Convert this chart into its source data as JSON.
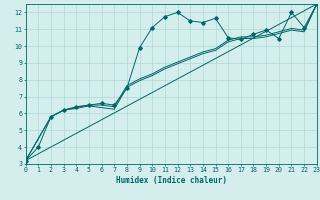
{
  "title": "",
  "xlabel": "Humidex (Indice chaleur)",
  "xlim": [
    0,
    23
  ],
  "ylim": [
    3,
    12.5
  ],
  "xticks": [
    0,
    1,
    2,
    3,
    4,
    5,
    6,
    7,
    8,
    9,
    10,
    11,
    12,
    13,
    14,
    15,
    16,
    17,
    18,
    19,
    20,
    21,
    22,
    23
  ],
  "yticks": [
    3,
    4,
    5,
    6,
    7,
    8,
    9,
    10,
    11,
    12
  ],
  "bg_color": "#d4eeee",
  "line_color": "#006666",
  "grid_color": "#b0d8d8",
  "line1_x": [
    0,
    1,
    2,
    3,
    4,
    5,
    6,
    7,
    8,
    9,
    10,
    11,
    12,
    13,
    14,
    15,
    16,
    17,
    18,
    19,
    20,
    21,
    22,
    23
  ],
  "line1_y": [
    3.2,
    4.0,
    5.8,
    6.2,
    6.4,
    6.5,
    6.6,
    6.5,
    7.5,
    9.9,
    11.1,
    11.75,
    12.0,
    11.5,
    11.4,
    11.65,
    10.5,
    10.4,
    10.7,
    10.95,
    10.45,
    12.0,
    11.1,
    12.5
  ],
  "line2_x": [
    0,
    2,
    3,
    4,
    5,
    6,
    7,
    8,
    9,
    10,
    11,
    12,
    13,
    14,
    15,
    16,
    17,
    18,
    19,
    20,
    21,
    22,
    23
  ],
  "line2_y": [
    3.2,
    5.8,
    6.2,
    6.3,
    6.45,
    6.35,
    6.25,
    7.55,
    7.95,
    8.25,
    8.65,
    8.95,
    9.25,
    9.55,
    9.75,
    10.25,
    10.45,
    10.45,
    10.55,
    10.75,
    10.95,
    10.85,
    12.5
  ],
  "line3_x": [
    0,
    23
  ],
  "line3_y": [
    3.2,
    12.5
  ],
  "line4_x": [
    0,
    2,
    3,
    4,
    5,
    6,
    7,
    8,
    9,
    10,
    11,
    12,
    13,
    14,
    15,
    16,
    17,
    18,
    19,
    20,
    21,
    22,
    23
  ],
  "line4_y": [
    3.2,
    5.8,
    6.2,
    6.35,
    6.5,
    6.5,
    6.4,
    7.65,
    8.05,
    8.35,
    8.75,
    9.05,
    9.35,
    9.65,
    9.85,
    10.35,
    10.55,
    10.55,
    10.65,
    10.85,
    11.05,
    10.95,
    12.5
  ]
}
